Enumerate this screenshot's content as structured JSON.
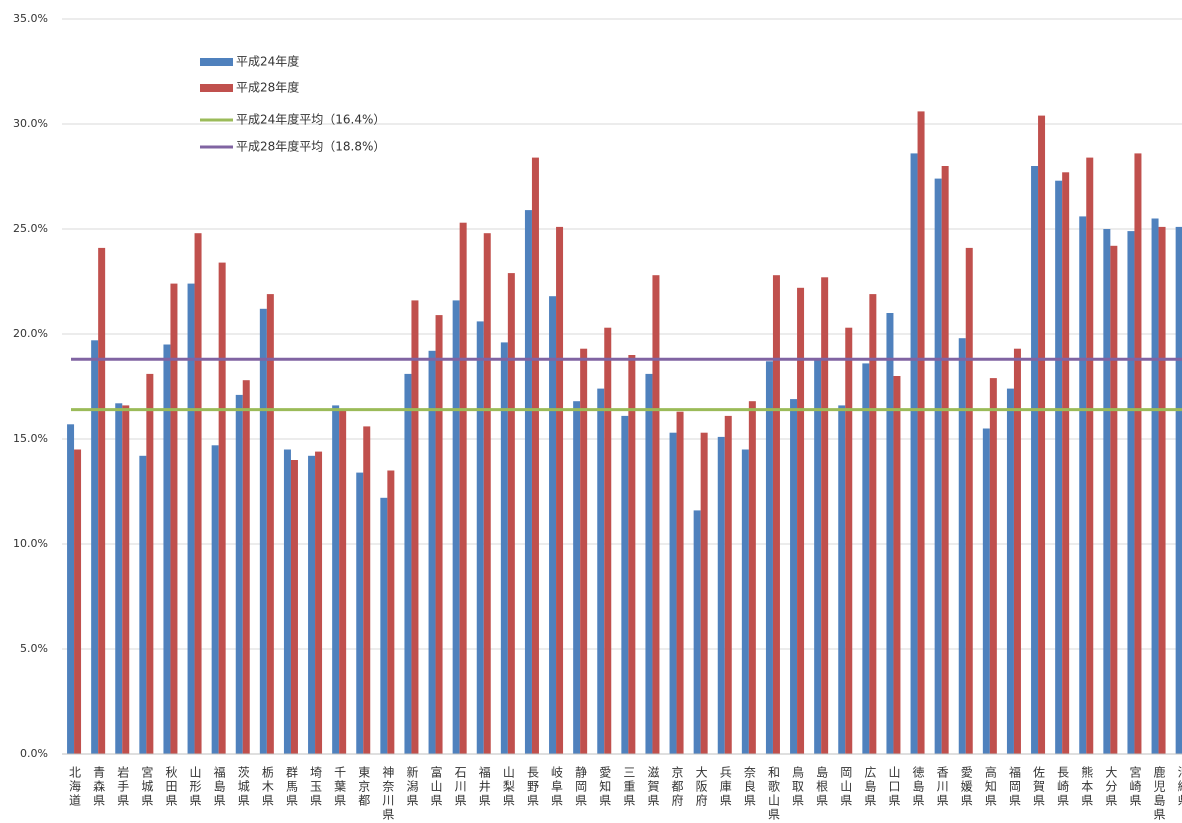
{
  "chart_data": {
    "type": "bar",
    "categories": [
      "北海道",
      "青森県",
      "岩手県",
      "宮城県",
      "秋田県",
      "山形県",
      "福島県",
      "茨城県",
      "栃木県",
      "群馬県",
      "埼玉県",
      "千葉県",
      "東京都",
      "神奈川県",
      "新潟県",
      "富山県",
      "石川県",
      "福井県",
      "山梨県",
      "長野県",
      "岐阜県",
      "静岡県",
      "愛知県",
      "三重県",
      "滋賀県",
      "京都府",
      "大阪府",
      "兵庫県",
      "奈良県",
      "和歌山県",
      "鳥取県",
      "島根県",
      "岡山県",
      "広島県",
      "山口県",
      "徳島県",
      "香川県",
      "愛媛県",
      "高知県",
      "福岡県",
      "佐賀県",
      "長崎県",
      "熊本県",
      "大分県",
      "宮崎県",
      "鹿児島県",
      "沖縄県"
    ],
    "series": [
      {
        "name": "平成24年度",
        "color": "#4f81bd",
        "values": [
          15.7,
          19.7,
          16.7,
          14.2,
          19.5,
          22.4,
          14.7,
          17.1,
          21.2,
          14.5,
          14.2,
          16.6,
          13.4,
          12.2,
          18.1,
          19.2,
          21.6,
          20.6,
          19.6,
          25.9,
          21.8,
          16.8,
          17.4,
          16.1,
          18.1,
          15.3,
          11.6,
          15.1,
          14.5,
          18.7,
          16.9,
          18.8,
          16.6,
          18.6,
          21.0,
          28.6,
          27.4,
          19.8,
          15.5,
          17.4,
          28.0,
          27.3,
          25.6,
          25.0,
          24.9,
          25.5,
          25.1
        ]
      },
      {
        "name": "平成28年度",
        "color": "#c0504d",
        "values": [
          14.5,
          24.1,
          16.6,
          18.1,
          22.4,
          24.8,
          23.4,
          17.8,
          21.9,
          14.0,
          14.4,
          16.4,
          15.6,
          13.5,
          21.6,
          20.9,
          25.3,
          24.8,
          22.9,
          28.4,
          25.1,
          19.3,
          20.3,
          19.0,
          22.8,
          16.3,
          15.3,
          16.1,
          16.8,
          22.8,
          22.2,
          22.7,
          20.3,
          21.9,
          18.0,
          30.6,
          28.0,
          24.1,
          17.9,
          19.3,
          30.4,
          27.7,
          28.4,
          24.2,
          28.6,
          25.1,
          null
        ]
      }
    ],
    "reference_lines": [
      {
        "name": "平成24年度平均（16.4%）",
        "color": "#9bbb59",
        "value": 16.4
      },
      {
        "name": "平成28年度平均（18.8%）",
        "color": "#8064a2",
        "value": 18.8
      }
    ],
    "ylim": [
      0,
      35
    ],
    "yticks": [
      {
        "value": 0,
        "label": "0.0%"
      },
      {
        "value": 5,
        "label": "5.0%"
      },
      {
        "value": 10,
        "label": "10.0%"
      },
      {
        "value": 15,
        "label": "15.0%"
      },
      {
        "value": 20,
        "label": "20.0%"
      },
      {
        "value": 25,
        "label": "25.0%"
      },
      {
        "value": 30,
        "label": "30.0%"
      },
      {
        "value": 35,
        "label": "35.0%"
      }
    ],
    "grid": true
  }
}
